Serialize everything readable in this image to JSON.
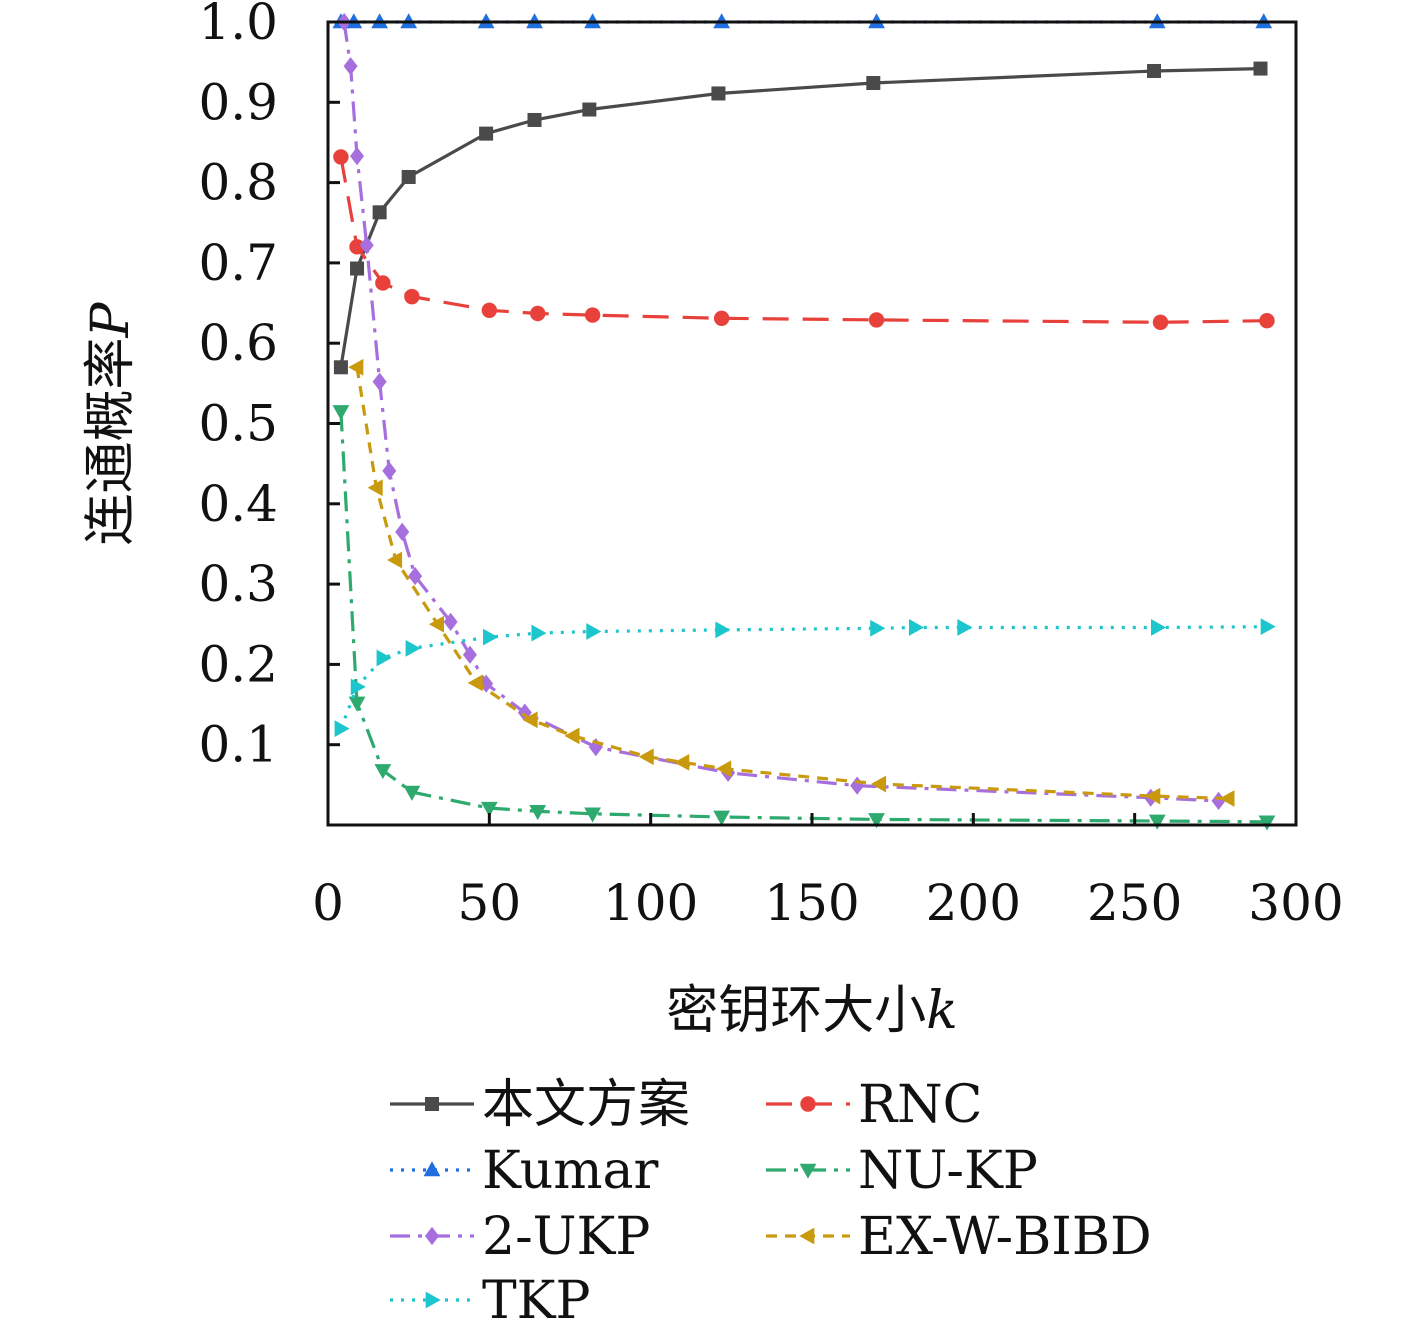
{
  "chart_data": {
    "type": "line",
    "title": "",
    "xlabel": "密钥环大小",
    "xlabel_var": "k",
    "ylabel": "连通概率",
    "ylabel_var": "P",
    "xlim": [
      0,
      300
    ],
    "ylim": [
      0,
      1.0
    ],
    "xticks": [
      0,
      50,
      100,
      150,
      200,
      250,
      300
    ],
    "xtick_labels": [
      "0",
      "50",
      "100",
      "150",
      "200",
      "250",
      "300"
    ],
    "yticks": [
      0.1,
      0.2,
      0.3,
      0.4,
      0.5,
      0.6,
      0.7,
      0.8,
      0.9,
      1.0
    ],
    "ytick_labels": [
      "0.1",
      "0.2",
      "0.3",
      "0.4",
      "0.5",
      "0.6",
      "0.7",
      "0.8",
      "0.9",
      "1.0"
    ],
    "grid": false,
    "legend_position": "bottom",
    "series": [
      {
        "name": "本文方案",
        "color": "#4a4a4a",
        "dash": "solid",
        "marker": "square",
        "x": [
          4,
          9,
          16,
          25,
          49,
          64,
          81,
          121,
          169,
          256,
          289
        ],
        "y": [
          0.57,
          0.693,
          0.763,
          0.807,
          0.861,
          0.878,
          0.891,
          0.911,
          0.924,
          0.939,
          0.942
        ]
      },
      {
        "name": "RNC",
        "color": "#e8413c",
        "dash": "long-dash",
        "marker": "circle",
        "x": [
          4,
          9,
          17,
          26,
          50,
          65,
          82,
          122,
          170,
          258,
          291
        ],
        "y": [
          0.832,
          0.72,
          0.675,
          0.658,
          0.641,
          0.637,
          0.635,
          0.631,
          0.629,
          0.626,
          0.628
        ]
      },
      {
        "name": "Kumar",
        "color": "#1f6fe0",
        "dash": "dotted",
        "marker": "triangle-up",
        "x": [
          4,
          8,
          16,
          25,
          49,
          64,
          82,
          122,
          170,
          257,
          290
        ],
        "y": [
          1.0,
          1.0,
          1.0,
          1.0,
          1.0,
          1.0,
          1.0,
          1.0,
          1.0,
          1.0,
          1.0
        ]
      },
      {
        "name": "NU-KP",
        "color": "#2eaa6e",
        "dash": "dash-dot",
        "marker": "triangle-down",
        "x": [
          4,
          9,
          17,
          26,
          50,
          65,
          82,
          122,
          170,
          257,
          291
        ],
        "y": [
          0.515,
          0.152,
          0.068,
          0.041,
          0.021,
          0.017,
          0.014,
          0.01,
          0.007,
          0.005,
          0.004
        ]
      },
      {
        "name": "2-UKP",
        "color": "#a66fdd",
        "dash": "dash-dot",
        "marker": "diamond",
        "x": [
          5,
          7,
          9,
          12,
          16,
          19,
          23,
          27,
          38,
          44,
          49,
          61,
          83,
          124,
          164,
          255,
          276
        ],
        "y": [
          1.0,
          0.945,
          0.833,
          0.722,
          0.552,
          0.441,
          0.365,
          0.31,
          0.253,
          0.212,
          0.176,
          0.14,
          0.097,
          0.065,
          0.049,
          0.034,
          0.03
        ]
      },
      {
        "name": "EX-W-BIBD",
        "color": "#c99a0e",
        "dash": "short-dash",
        "marker": "triangle-left",
        "x": [
          9,
          15,
          21,
          34,
          46,
          63,
          76,
          99,
          110,
          123,
          171,
          256,
          279
        ],
        "y": [
          0.57,
          0.42,
          0.33,
          0.25,
          0.177,
          0.131,
          0.111,
          0.085,
          0.078,
          0.07,
          0.051,
          0.036,
          0.033
        ]
      },
      {
        "name": "TKP",
        "color": "#1cc6cc",
        "dash": "dotted",
        "marker": "triangle-right",
        "x": [
          4,
          9,
          17,
          26,
          50,
          65,
          82,
          122,
          170,
          182,
          197,
          257,
          291
        ],
        "y": [
          0.12,
          0.172,
          0.208,
          0.22,
          0.234,
          0.239,
          0.241,
          0.243,
          0.245,
          0.246,
          0.246,
          0.246,
          0.247
        ]
      }
    ]
  }
}
